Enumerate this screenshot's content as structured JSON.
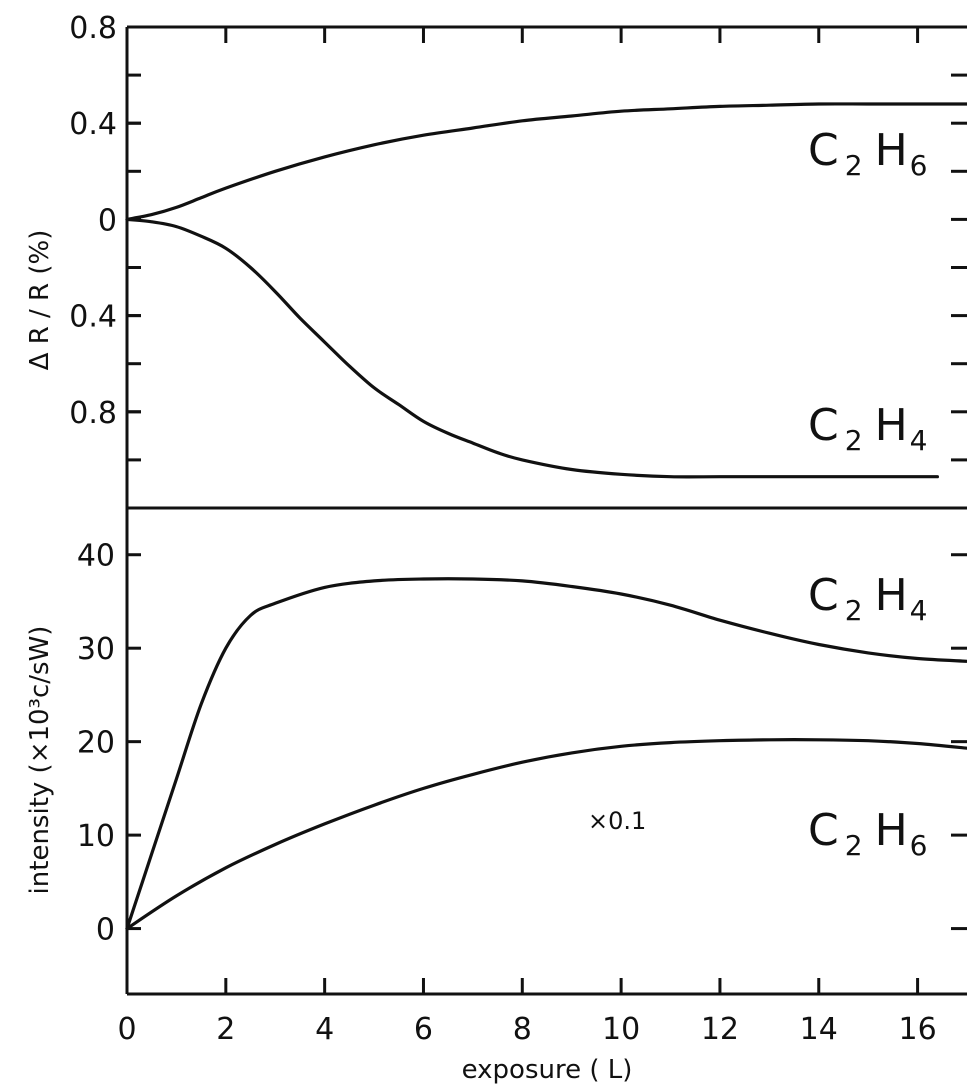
{
  "chart_data": [
    {
      "type": "line",
      "panel": "top",
      "ylabel": "Δ R / R (%)",
      "xlabel": "",
      "xlim": [
        0,
        17
      ],
      "ylim": [
        -1.2,
        0.8
      ],
      "yticks": [
        {
          "value": 0.8,
          "label": "0.8"
        },
        {
          "value": 0.4,
          "label": "0.4"
        },
        {
          "value": 0,
          "label": "0"
        },
        {
          "value": -0.4,
          "label": "0.4"
        },
        {
          "value": -0.8,
          "label": "0.8"
        }
      ],
      "series": [
        {
          "name": "C2H6",
          "label_main": "C",
          "label_sub": "2",
          "label_main2": "H",
          "label_sub2": "6",
          "x": [
            0,
            0.5,
            1,
            1.5,
            2,
            3,
            4,
            5,
            6,
            7,
            8,
            9,
            10,
            11,
            12,
            13,
            14,
            15,
            16,
            17
          ],
          "y": [
            0,
            0.02,
            0.05,
            0.09,
            0.13,
            0.2,
            0.26,
            0.31,
            0.35,
            0.38,
            0.41,
            0.43,
            0.45,
            0.46,
            0.47,
            0.475,
            0.48,
            0.48,
            0.48,
            0.48
          ]
        },
        {
          "name": "C2H4",
          "label_main": "C",
          "label_sub": "2",
          "label_main2": "H",
          "label_sub2": "4",
          "x": [
            0,
            0.5,
            1,
            1.5,
            2,
            2.5,
            3,
            3.5,
            4,
            4.5,
            5,
            5.5,
            6,
            6.5,
            7,
            7.5,
            8,
            9,
            10,
            11,
            12,
            13,
            14,
            15,
            16,
            16.4
          ],
          "y": [
            0,
            -0.01,
            -0.03,
            -0.07,
            -0.12,
            -0.2,
            -0.3,
            -0.41,
            -0.51,
            -0.61,
            -0.7,
            -0.77,
            -0.84,
            -0.89,
            -0.93,
            -0.97,
            -1.0,
            -1.04,
            -1.06,
            -1.07,
            -1.07,
            -1.07,
            -1.07,
            -1.07,
            -1.07,
            -1.07
          ]
        }
      ]
    },
    {
      "type": "line",
      "panel": "bottom",
      "xlabel": "exposure ( L)",
      "ylabel": "intensity (×10³c/sW)",
      "xlim": [
        0,
        17
      ],
      "ylim": [
        -7,
        45
      ],
      "xticks": [
        0,
        2,
        4,
        6,
        8,
        10,
        12,
        14,
        16
      ],
      "yticks": [
        0,
        10,
        20,
        30,
        40
      ],
      "series": [
        {
          "name": "C2H4",
          "label_main": "C",
          "label_sub": "2",
          "label_main2": "H",
          "label_sub2": "4",
          "x": [
            0,
            0.5,
            1,
            1.5,
            2,
            2.5,
            3,
            4,
            5,
            6,
            7,
            8,
            9,
            10,
            11,
            12,
            13,
            14,
            15,
            16,
            17
          ],
          "y": [
            0,
            8,
            16,
            24,
            30,
            33.5,
            34.8,
            36.5,
            37.2,
            37.4,
            37.4,
            37.2,
            36.6,
            35.8,
            34.6,
            33.0,
            31.6,
            30.4,
            29.5,
            28.9,
            28.6
          ]
        },
        {
          "name": "C2H6",
          "label_main": "C",
          "label_sub": "2",
          "label_main2": "H",
          "label_sub2": "6",
          "annotation": "×0.1",
          "x": [
            0,
            1,
            2,
            3,
            4,
            5,
            6,
            7,
            8,
            9,
            10,
            11,
            12,
            13,
            14,
            15,
            16,
            17
          ],
          "y": [
            0,
            3.5,
            6.5,
            9.0,
            11.2,
            13.2,
            15.0,
            16.5,
            17.8,
            18.8,
            19.5,
            19.9,
            20.1,
            20.2,
            20.2,
            20.1,
            19.8,
            19.3
          ]
        }
      ]
    }
  ]
}
